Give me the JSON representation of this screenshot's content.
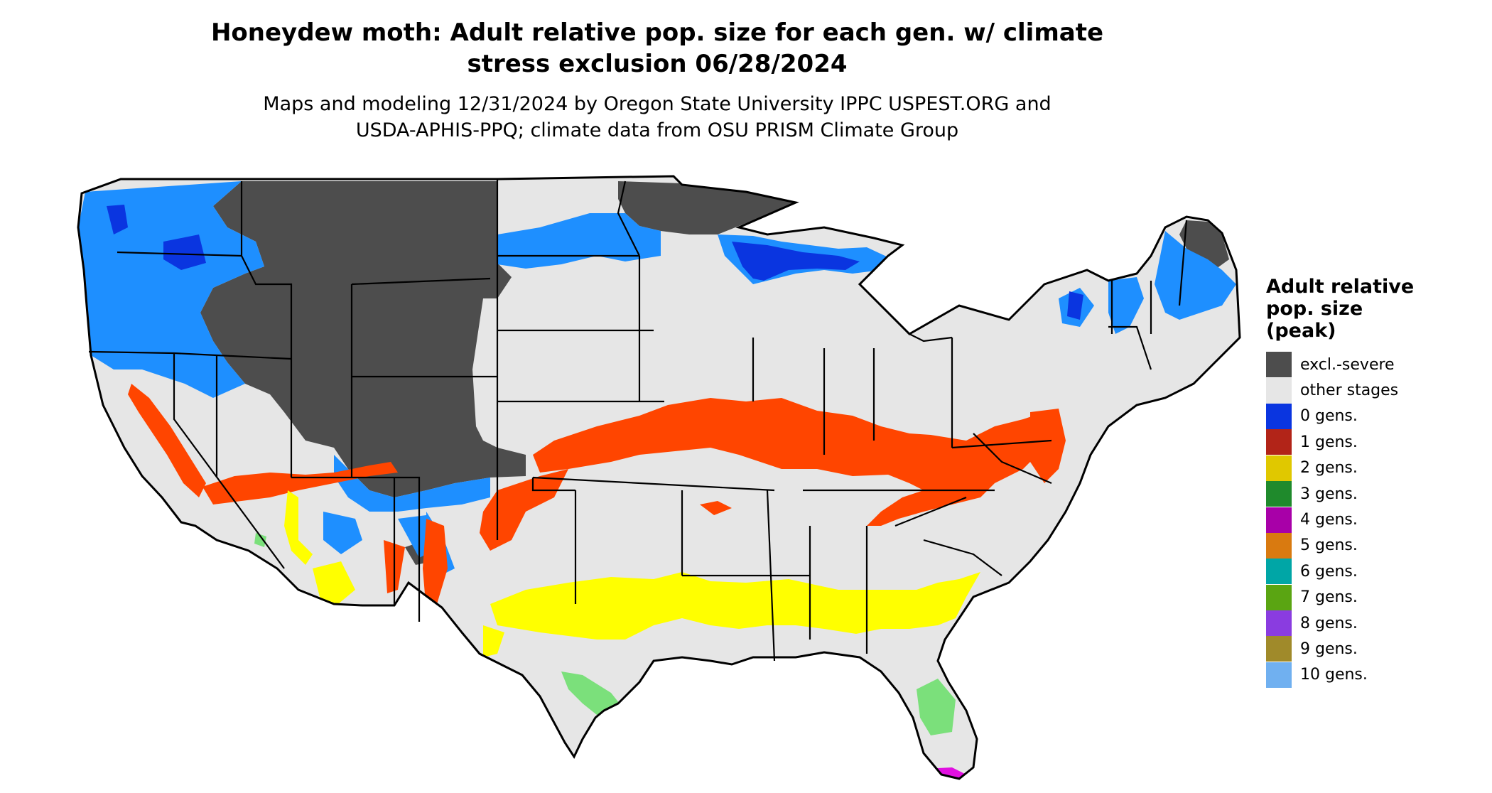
{
  "title_line1": "Honeydew moth: Adult relative pop. size for each gen. w/ climate",
  "title_line2": "stress exclusion 06/28/2024",
  "subtitle_line1": "Maps and modeling 12/31/2024 by Oregon State University IPPC USPEST.ORG and",
  "subtitle_line2": "USDA-APHIS-PPQ; climate data from OSU PRISM Climate Group",
  "legend": {
    "title_line1": "Adult relative",
    "title_line2": "pop. size",
    "title_line3": "(peak)",
    "items": [
      {
        "label": "excl.-severe",
        "color": "#4d4d4d"
      },
      {
        "label": "other stages",
        "color": "#e6e6e6"
      },
      {
        "label": "0 gens.",
        "color": "#0a35e0"
      },
      {
        "label": "1 gens.",
        "color": "#b22418"
      },
      {
        "label": "2 gens.",
        "color": "#e0c800"
      },
      {
        "label": "3 gens.",
        "color": "#1f8a2c"
      },
      {
        "label": "4 gens.",
        "color": "#a800a8"
      },
      {
        "label": "5 gens.",
        "color": "#d97a10"
      },
      {
        "label": "6 gens.",
        "color": "#00a6a6"
      },
      {
        "label": "7 gens.",
        "color": "#5aa512"
      },
      {
        "label": "8 gens.",
        "color": "#8a3ce0"
      },
      {
        "label": "9 gens.",
        "color": "#a08a2a"
      },
      {
        "label": "10 gens.",
        "color": "#70b0f0"
      }
    ]
  },
  "map_colors": {
    "land": "#e6e6e6",
    "excluded": "#4d4d4d",
    "zero_gen_light": "#1e8fff",
    "zero_gen_dark": "#0a35e0",
    "one_gen_band": "#ff4500",
    "two_gen_band": "#ffff00",
    "three_gen_patch": "#7be07b",
    "four_gen_patch": "#e010e0"
  }
}
